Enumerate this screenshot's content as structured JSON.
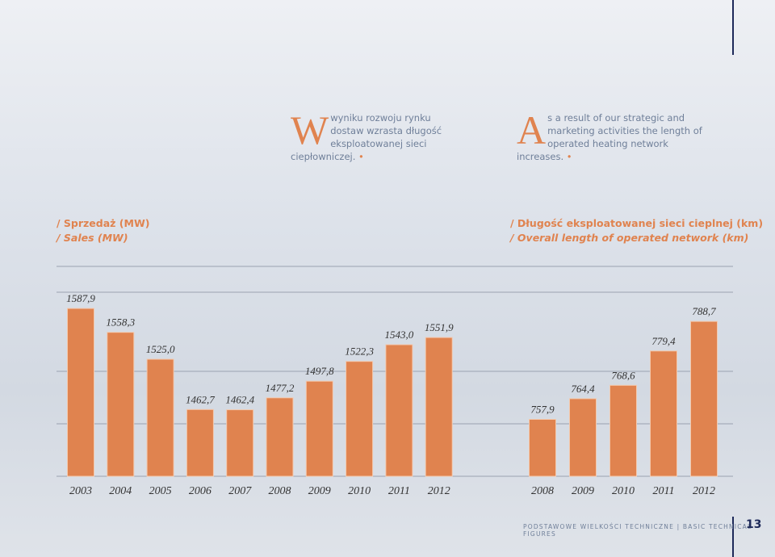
{
  "intro": [
    {
      "initial": "W",
      "text": "wyniku rozwoju rynku dostaw wzrasta długość eksploatowanej sieci ciepłowniczej."
    },
    {
      "initial": "A",
      "text": "s a result of our strategic and marketing activities the length of operated heating network increases."
    }
  ],
  "chart_data": [
    {
      "type": "bar",
      "title": "/ Sprzedaż (MW)",
      "subtitle": "/ Sales (MW)",
      "categories": [
        "2003",
        "2004",
        "2005",
        "2006",
        "2007",
        "2008",
        "2009",
        "2010",
        "2011",
        "2012"
      ],
      "values": [
        1587.9,
        1558.3,
        1525.0,
        1462.7,
        1462.4,
        1477.2,
        1497.8,
        1522.3,
        1543.0,
        1551.9
      ],
      "value_labels": [
        "1587,9",
        "1558,3",
        "1525,0",
        "1462,7",
        "1462,4",
        "1477,2",
        "1497,8",
        "1522,3",
        "1543,0",
        "1551,9"
      ],
      "color": "#e0834f",
      "ylim": [
        1380,
        1640
      ]
    },
    {
      "type": "bar",
      "title": "/ Długość eksploatowanej sieci cieplnej (km)",
      "subtitle": "/ Overall length of operated network (km)",
      "categories": [
        "2008",
        "2009",
        "2010",
        "2011",
        "2012"
      ],
      "values": [
        757.9,
        764.4,
        768.6,
        779.4,
        788.7
      ],
      "value_labels": [
        "757,9",
        "764,4",
        "768,6",
        "779,4",
        "788,7"
      ],
      "color": "#e0834f",
      "ylim": [
        740,
        806
      ]
    }
  ],
  "footer": {
    "section": "PODSTAWOWE WIELKOŚCI TECHNICZNE | BASIC TECHNICAL FIGURES",
    "page": "13"
  }
}
